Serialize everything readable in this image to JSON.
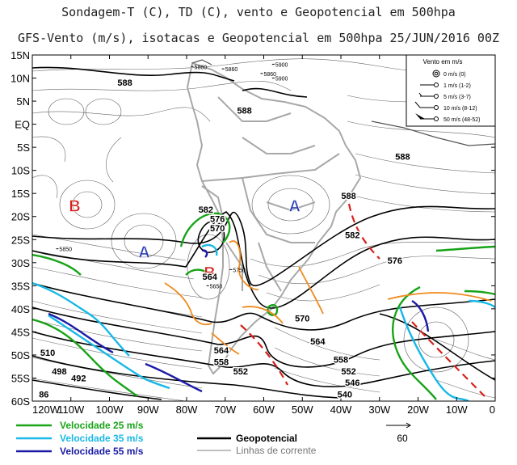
{
  "title_line1": "Sondagem-T (C), TD (C), vento e Geopotencial em 500hpa",
  "title_line2": "GFS-Vento (m/s), isotacas e Geopotencial em 500hpa 25/JUN/2016 00Z",
  "lat_labels": [
    "15N",
    "10N",
    "5N",
    "EQ",
    "5S",
    "10S",
    "15S",
    "20S",
    "25S",
    "30S",
    "35S",
    "40S",
    "45S",
    "50S",
    "55S",
    "60S"
  ],
  "lon_labels": [
    "120W",
    "110W",
    "100W",
    "90W",
    "80W",
    "70W",
    "60W",
    "50W",
    "40W",
    "30W",
    "20W",
    "10W",
    "0"
  ],
  "pressure_centers": [
    {
      "letter": "B",
      "lon": -109,
      "lat": -17.5,
      "color": "#d6201a"
    },
    {
      "letter": "A",
      "lon": -91,
      "lat": -27.5,
      "color": "#2a3fb8"
    },
    {
      "letter": "B",
      "lon": -74,
      "lat": -32,
      "color": "#d6201a"
    },
    {
      "letter": "A",
      "lon": -52,
      "lat": -17.5,
      "color": "#2a3fb8"
    }
  ],
  "contour_labels": [
    {
      "text": "588",
      "lon": -96,
      "lat": 9
    },
    {
      "text": "588",
      "lon": -65,
      "lat": 3
    },
    {
      "text": "588",
      "lon": -24,
      "lat": -7
    },
    {
      "text": "588",
      "lon": -38,
      "lat": -15.5
    },
    {
      "text": "582",
      "lon": -75,
      "lat": -18.5
    },
    {
      "text": "576",
      "lon": -72,
      "lat": -20.5
    },
    {
      "text": "570",
      "lon": -72,
      "lat": -22.5
    },
    {
      "text": "582",
      "lon": -37,
      "lat": -24
    },
    {
      "text": "576",
      "lon": -26,
      "lat": -29.5
    },
    {
      "text": "564",
      "lon": -74,
      "lat": -33
    },
    {
      "text": "570",
      "lon": -50,
      "lat": -42
    },
    {
      "text": "564",
      "lon": -46,
      "lat": -47
    },
    {
      "text": "564",
      "lon": -71,
      "lat": -49
    },
    {
      "text": "558",
      "lon": -40,
      "lat": -51
    },
    {
      "text": "558",
      "lon": -71,
      "lat": -51.5
    },
    {
      "text": "552",
      "lon": -66,
      "lat": -53.5
    },
    {
      "text": "552",
      "lon": -38,
      "lat": -53.5
    },
    {
      "text": "546",
      "lon": -37,
      "lat": -56
    },
    {
      "text": "540",
      "lon": -39,
      "lat": -58.5
    },
    {
      "text": "510",
      "lon": -116,
      "lat": -49.5
    },
    {
      "text": "498",
      "lon": -113,
      "lat": -53.5
    },
    {
      "text": "492",
      "lon": -108,
      "lat": -55
    },
    {
      "text": "86",
      "lon": -117,
      "lat": -58.5
    }
  ],
  "station_labels": [
    {
      "text": "5880",
      "lon": -78,
      "lat": 12.5
    },
    {
      "text": "5860",
      "lon": -70,
      "lat": 12
    },
    {
      "text": "5900",
      "lon": -57,
      "lat": 13
    },
    {
      "text": "5860",
      "lon": -60,
      "lat": 11
    },
    {
      "text": "5900",
      "lon": -57,
      "lat": 10
    },
    {
      "text": "5850",
      "lon": -113,
      "lat": -27
    },
    {
      "text": "5750",
      "lon": -68,
      "lat": -31.5
    },
    {
      "text": "5650",
      "lon": -74,
      "lat": -35
    }
  ],
  "wind_legend": {
    "title": "Vento em m/s",
    "entries": [
      "0 m/s (0)",
      "1 m/s (1-2)",
      "5 m/s (3-7)",
      "10 m/s (8-12)",
      "50 m/s (48-52)"
    ]
  },
  "isotach_legend": [
    {
      "label": "Velocidade 25 m/s",
      "color": "#18a318"
    },
    {
      "label": "Velocidade 35 m/s",
      "color": "#19b8e6"
    },
    {
      "label": "Velocidade 55 m/s",
      "color": "#1a1aa6"
    }
  ],
  "line_legend": [
    {
      "label": "Geopotencial",
      "color": "#000000"
    },
    {
      "label": "Linhas de corrente",
      "color": "#888888"
    }
  ],
  "scale_vector": {
    "label": "60"
  },
  "colors": {
    "trough": "#d6201a",
    "jet_axis": "#f08a1e",
    "coast": "#a8a8a8",
    "streamline": "#2a2a2a"
  }
}
